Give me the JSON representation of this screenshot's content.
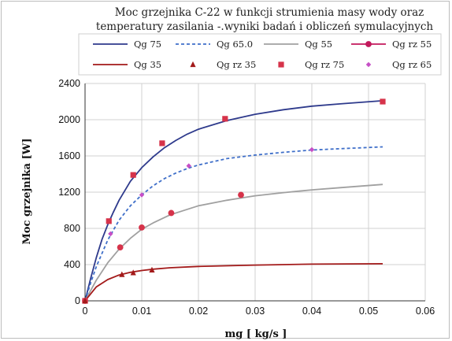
{
  "chart_data": {
    "type": "line",
    "title_lines": [
      "Moc grzejnika C-22 w funkcji strumienia masy wody  oraz",
      "temperatury zasilania -.wyniki badań i obliczeń symulacyjnych"
    ],
    "xlabel": "mg [ kg/s ]",
    "ylabel": "Moc grzejnika [W]",
    "xlim": [
      0,
      0.06
    ],
    "ylim": [
      0,
      2400
    ],
    "x_ticks": [
      "0",
      "0.01",
      "0.02",
      "0.03",
      "0.04",
      "0.05",
      "0.06"
    ],
    "y_ticks": [
      "0",
      "400",
      "800",
      "1200",
      "1600",
      "2000",
      "2400"
    ],
    "grid": true,
    "legend_position": "top",
    "legend": [
      {
        "label": "Qg 75",
        "style": "solid-line",
        "color": "#2e3a8c"
      },
      {
        "label": "Qg 65.0",
        "style": "dashed-line",
        "color": "#3f6fc9"
      },
      {
        "label": "Qg 55",
        "style": "solid-line",
        "color": "#a0a0a0"
      },
      {
        "label": "Qg rz 55",
        "style": "line-circle-marker",
        "color": "#c2185b"
      },
      {
        "label": "Qg 35",
        "style": "solid-line",
        "color": "#a31a1a"
      },
      {
        "label": "Qg rz 35",
        "style": "triangle-marker",
        "color": "#a31a1a"
      },
      {
        "label": "Qg rz 75",
        "style": "square-marker",
        "color": "#d6334a"
      },
      {
        "label": "Qg rz 65",
        "style": "diamond-marker",
        "color": "#c64fc6"
      }
    ],
    "curves": [
      {
        "name": "Qg 75",
        "color": "#2e3a8c",
        "dash": false,
        "x": [
          0,
          0.001,
          0.002,
          0.003,
          0.004,
          0.005,
          0.006,
          0.008,
          0.01,
          0.012,
          0.014,
          0.016,
          0.018,
          0.02,
          0.025,
          0.03,
          0.035,
          0.04,
          0.045,
          0.0525
        ],
        "y": [
          0,
          250,
          480,
          680,
          840,
          980,
          1110,
          1320,
          1470,
          1590,
          1690,
          1770,
          1840,
          1895,
          1990,
          2060,
          2110,
          2150,
          2175,
          2210
        ]
      },
      {
        "name": "Qg 65.0",
        "color": "#3f6fc9",
        "dash": true,
        "x": [
          0,
          0.001,
          0.002,
          0.004,
          0.006,
          0.008,
          0.01,
          0.012,
          0.014,
          0.016,
          0.018,
          0.02,
          0.025,
          0.03,
          0.035,
          0.04,
          0.045,
          0.0525
        ],
        "y": [
          0,
          200,
          380,
          670,
          890,
          1050,
          1170,
          1270,
          1350,
          1410,
          1460,
          1500,
          1570,
          1610,
          1640,
          1665,
          1680,
          1700
        ]
      },
      {
        "name": "Qg 55",
        "color": "#a0a0a0",
        "dash": false,
        "x": [
          0,
          0.002,
          0.004,
          0.006,
          0.008,
          0.01,
          0.012,
          0.015,
          0.02,
          0.025,
          0.03,
          0.035,
          0.04,
          0.045,
          0.0525
        ],
        "y": [
          0,
          230,
          420,
          570,
          690,
          790,
          860,
          950,
          1050,
          1110,
          1160,
          1195,
          1225,
          1250,
          1285
        ]
      },
      {
        "name": "Qg 35",
        "color": "#a31a1a",
        "dash": false,
        "x": [
          0,
          0.002,
          0.004,
          0.006,
          0.008,
          0.01,
          0.012,
          0.015,
          0.02,
          0.03,
          0.04,
          0.0525
        ],
        "y": [
          0,
          155,
          235,
          285,
          315,
          335,
          350,
          365,
          380,
          395,
          405,
          410
        ]
      }
    ],
    "points": [
      {
        "name": "Qg rz 75",
        "marker": "square",
        "color": "#d6334a",
        "x": [
          0,
          0.0042,
          0.0085,
          0.0136,
          0.0247,
          0.0525
        ],
        "y": [
          0,
          880,
          1390,
          1740,
          2010,
          2200
        ]
      },
      {
        "name": "Qg rz 65",
        "marker": "diamond",
        "color": "#c64fc6",
        "x": [
          0,
          0.0045,
          0.01,
          0.0183,
          0.04
        ],
        "y": [
          0,
          740,
          1170,
          1490,
          1670
        ]
      },
      {
        "name": "Qg rz 55",
        "marker": "circle",
        "color": "#d6334a",
        "x": [
          0,
          0.0062,
          0.01,
          0.0152,
          0.0275
        ],
        "y": [
          0,
          590,
          810,
          970,
          1170
        ]
      },
      {
        "name": "Qg rz 35",
        "marker": "triangle",
        "color": "#a31a1a",
        "x": [
          0,
          0.0065,
          0.0085,
          0.0118
        ],
        "y": [
          0,
          290,
          310,
          340
        ]
      }
    ]
  }
}
